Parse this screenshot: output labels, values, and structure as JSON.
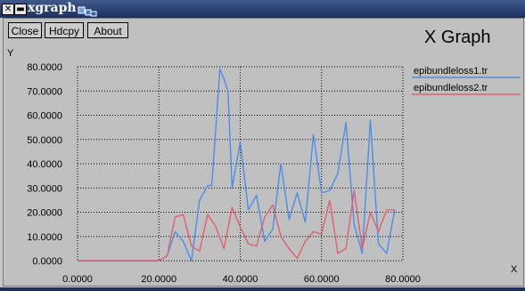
{
  "window": {
    "title": "xgraph"
  },
  "toolbar": {
    "close_label": "Close",
    "hdcpy_label": "Hdcpy",
    "about_label": "About"
  },
  "graph_title": "X Graph",
  "colors": {
    "background": "#c0c0c0",
    "series1": "#4a8ee8",
    "series2": "#e06070",
    "grid": "#000000"
  },
  "chart_data": {
    "type": "line",
    "title": "X Graph",
    "xlabel": "X",
    "ylabel": "Y",
    "xlim": [
      0,
      80
    ],
    "ylim": [
      0,
      80
    ],
    "grid": true,
    "legend_position": "right",
    "x_tick_labels": [
      "0.0000",
      "20.0000",
      "40.0000",
      "60.0000",
      "80.0000"
    ],
    "y_tick_labels": [
      "0.0000",
      "10.0000",
      "20.0000",
      "30.0000",
      "40.0000",
      "50.0000",
      "60.0000",
      "70.0000",
      "80.0000"
    ],
    "series": [
      {
        "name": "epibundleloss1.tr",
        "x": [
          0,
          20,
          21,
          22,
          24,
          26,
          28,
          30,
          32,
          33,
          35,
          36,
          37,
          38,
          40,
          42,
          44,
          46,
          48,
          50,
          52,
          54,
          56,
          58,
          60,
          62,
          64,
          66,
          68,
          70,
          72,
          74,
          76,
          78
        ],
        "y": [
          0,
          0,
          1,
          2,
          12,
          8,
          0,
          25,
          31,
          31,
          79,
          75,
          70,
          30,
          49,
          21,
          27,
          8,
          13,
          40,
          17,
          28,
          16,
          52,
          28,
          29,
          36,
          57,
          15,
          3,
          58,
          7,
          3,
          21
        ]
      },
      {
        "name": "epibundleloss2.tr",
        "x": [
          0,
          20,
          21,
          22,
          24,
          26,
          28,
          30,
          32,
          34,
          36,
          38,
          40,
          42,
          44,
          46,
          48,
          50,
          52,
          54,
          56,
          58,
          60,
          62,
          64,
          66,
          68,
          70,
          72,
          74,
          76,
          78
        ],
        "y": [
          0,
          0,
          1,
          2,
          18,
          19,
          6,
          4,
          19,
          14,
          5,
          22,
          14,
          7,
          6,
          18,
          23,
          10,
          5,
          1,
          8,
          12,
          11,
          25,
          3,
          5,
          29,
          5,
          20,
          12,
          21,
          21
        ]
      }
    ]
  }
}
